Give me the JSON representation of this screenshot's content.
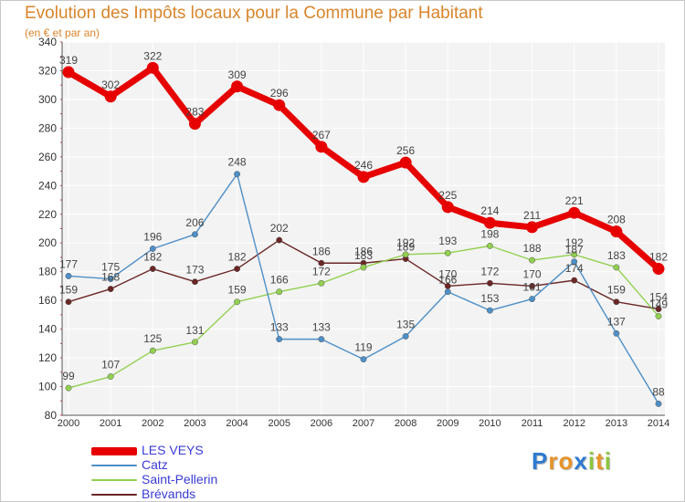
{
  "chart_data": {
    "type": "line",
    "title": "Evolution des Impôts locaux pour la Commune par Habitant",
    "subtitle": "(en € et par an)",
    "xlabel": "",
    "ylabel": "",
    "ylim": [
      80,
      340
    ],
    "yticks": [
      "80",
      "100",
      "120",
      "140",
      "160",
      "180",
      "200",
      "220",
      "240",
      "260",
      "280",
      "300",
      "320",
      "340"
    ],
    "categories": [
      "2000",
      "2001",
      "2002",
      "2003",
      "2004",
      "2005",
      "2006",
      "2007",
      "2008",
      "2009",
      "2010",
      "2011",
      "2012",
      "2013",
      "2014"
    ],
    "grid": true,
    "legend_position": "bottom-left",
    "series": [
      {
        "name": "LES VEYS",
        "color": "#e60000",
        "values": [
          319,
          302,
          322,
          283,
          309,
          296,
          267,
          246,
          256,
          225,
          214,
          211,
          221,
          208,
          182
        ],
        "labels": [
          "319",
          "302",
          "322",
          "283",
          "309",
          "296",
          "267",
          "246",
          "256",
          "225",
          "214",
          "211",
          "221",
          "208",
          "182"
        ]
      },
      {
        "name": "Catz",
        "color": "#4e8fc7",
        "values": [
          177,
          175,
          196,
          206,
          248,
          133,
          133,
          119,
          135,
          166,
          153,
          161,
          187,
          137,
          88
        ],
        "labels": [
          "177",
          "175",
          "196",
          "206",
          "248",
          "133",
          "133",
          "119",
          "135",
          "166",
          "153",
          "161",
          "187",
          "137",
          "88"
        ]
      },
      {
        "name": "Saint-Pellerin",
        "color": "#92d050",
        "values": [
          99,
          107,
          125,
          131,
          159,
          166,
          172,
          183,
          192,
          193,
          198,
          188,
          192,
          183,
          149
        ],
        "labels": [
          "99",
          "107",
          "125",
          "131",
          "159",
          "166",
          "172",
          "183",
          "192",
          "193",
          "198",
          "188",
          "192",
          "183",
          "149"
        ]
      },
      {
        "name": "Brévands",
        "color": "#6b2626",
        "values": [
          159,
          168,
          182,
          173,
          182,
          202,
          186,
          186,
          189,
          170,
          172,
          170,
          174,
          159,
          154
        ],
        "labels": [
          "159",
          "168",
          "182",
          "173",
          "182",
          "202",
          "186",
          "186",
          "189",
          "170",
          "172",
          "170",
          "174",
          "159",
          "154"
        ]
      }
    ]
  },
  "logo": {
    "letters": [
      "P",
      "r",
      "o",
      "x",
      "i",
      "t",
      "i"
    ],
    "colors": [
      "#2f7bd1",
      "#e6942a",
      "#e6942a",
      "#2f7bd1",
      "#8cc63f",
      "#e6942a",
      "#8cc63f"
    ]
  }
}
